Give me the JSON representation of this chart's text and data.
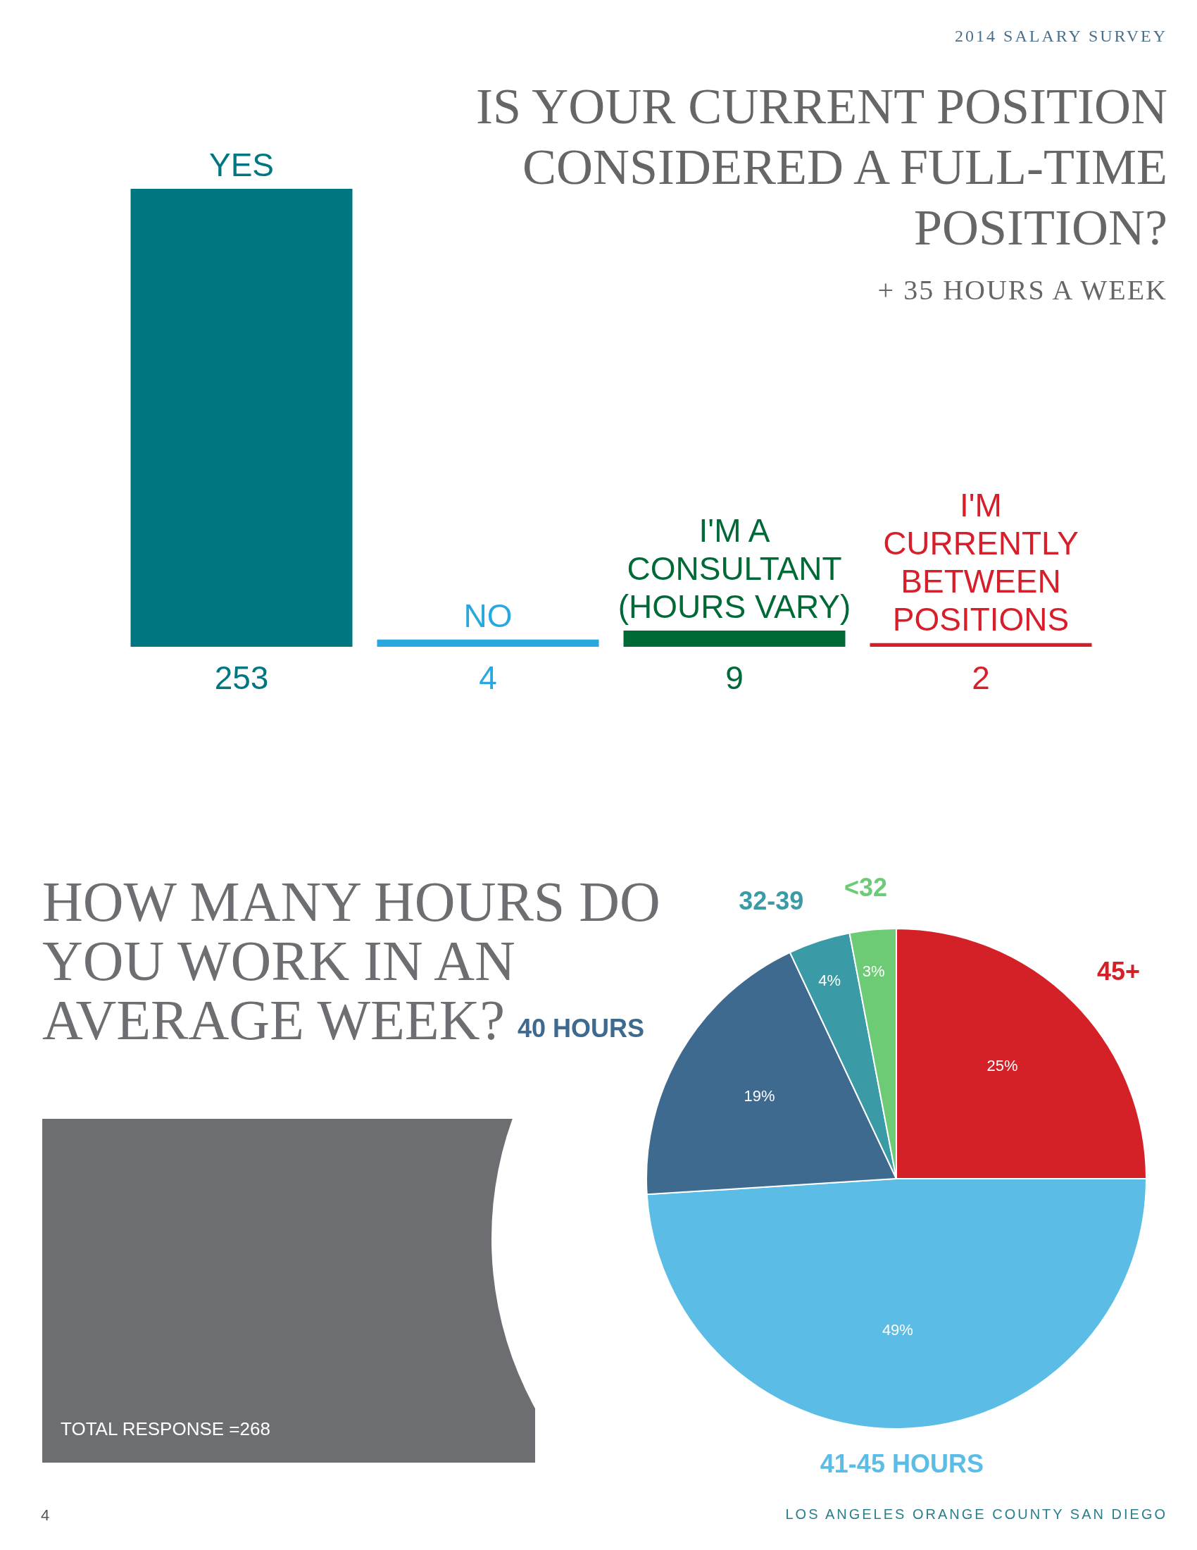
{
  "chart_data": [
    {
      "type": "bar",
      "title": "IS YOUR CURRENT POSITION CONSIDERED A FULL-TIME POSITION?",
      "subtitle": "+ 35 HOURS A WEEK",
      "annotations": [
        "2014 SALARY SURVEY"
      ],
      "categories": [
        "YES",
        "NO",
        "I'M A CONSULTANT (HOURS VARY)",
        "I'M CURRENTLY BETWEEN POSITIONS"
      ],
      "values": [
        253,
        4,
        9,
        2
      ],
      "colors": [
        "#007681",
        "#29a8e0",
        "#006a37",
        "#d71f2b"
      ],
      "data_labels": true,
      "legend": false
    },
    {
      "type": "pie",
      "title": "HOW MANY HOURS DO YOU WORK IN AN AVERAGE WEEK?",
      "categories": [
        "45+",
        "41-45 HOURS",
        "40 HOURS",
        "32-39",
        "<32"
      ],
      "values": [
        25,
        49,
        19,
        4,
        3
      ],
      "colors": [
        "#d42027",
        "#5bbde6",
        "#3e6a8f",
        "#3a9aa5",
        "#6ccb74"
      ],
      "value_labels": [
        "25%",
        "49%",
        "19%",
        "4%",
        "3%"
      ],
      "annotations": [
        "TOTAL RESPONSE =268",
        "4",
        "LOS ANGELES   ORANGE COUNTY   SAN DIEGO"
      ],
      "legend": false
    }
  ]
}
